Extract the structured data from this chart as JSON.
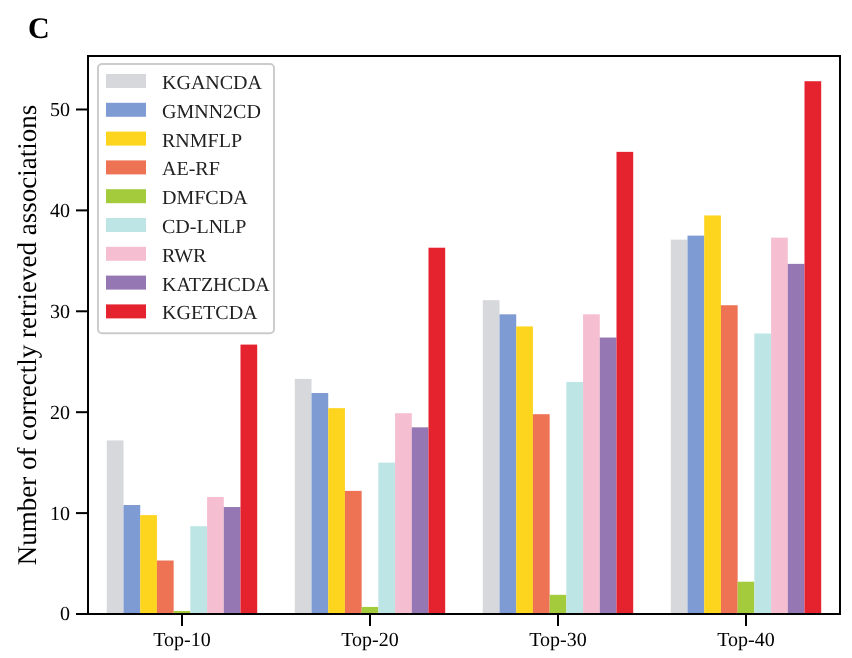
{
  "chart_data": {
    "type": "bar",
    "title": "C",
    "ylabel": "Number of correctly retrieved associations",
    "categories": [
      "Top-10",
      "Top-20",
      "Top-30",
      "Top-40"
    ],
    "series": [
      {
        "name": "KGANCDA",
        "color": "#d7d8dc",
        "values": [
          17.2,
          23.3,
          31.1,
          37.1
        ]
      },
      {
        "name": "GMNN2CD",
        "color": "#7f9bd3",
        "values": [
          10.8,
          21.9,
          29.7,
          37.5
        ]
      },
      {
        "name": "RNMFLP",
        "color": "#fdd41e",
        "values": [
          9.8,
          20.4,
          28.5,
          39.5
        ]
      },
      {
        "name": "AE-RF",
        "color": "#ee7254",
        "values": [
          5.3,
          12.2,
          19.8,
          30.6
        ]
      },
      {
        "name": "DMFCDA",
        "color": "#a3cb3c",
        "values": [
          0.3,
          0.7,
          1.9,
          3.2
        ]
      },
      {
        "name": "CD-LNLP",
        "color": "#bde5e6",
        "values": [
          8.7,
          15.0,
          23.0,
          27.8
        ]
      },
      {
        "name": "RWR",
        "color": "#f5bfd1",
        "values": [
          11.6,
          19.9,
          29.7,
          37.3
        ]
      },
      {
        "name": "KATZHCDA",
        "color": "#9577b3",
        "values": [
          10.6,
          18.5,
          27.4,
          34.7
        ]
      },
      {
        "name": "KGETCDA",
        "color": "#e5232f",
        "values": [
          26.7,
          36.3,
          45.8,
          52.8
        ]
      }
    ],
    "ylim": [
      0,
      55.3
    ],
    "yticks": [
      0,
      10,
      20,
      30,
      40,
      50
    ],
    "grid": false,
    "legend": "top left"
  }
}
